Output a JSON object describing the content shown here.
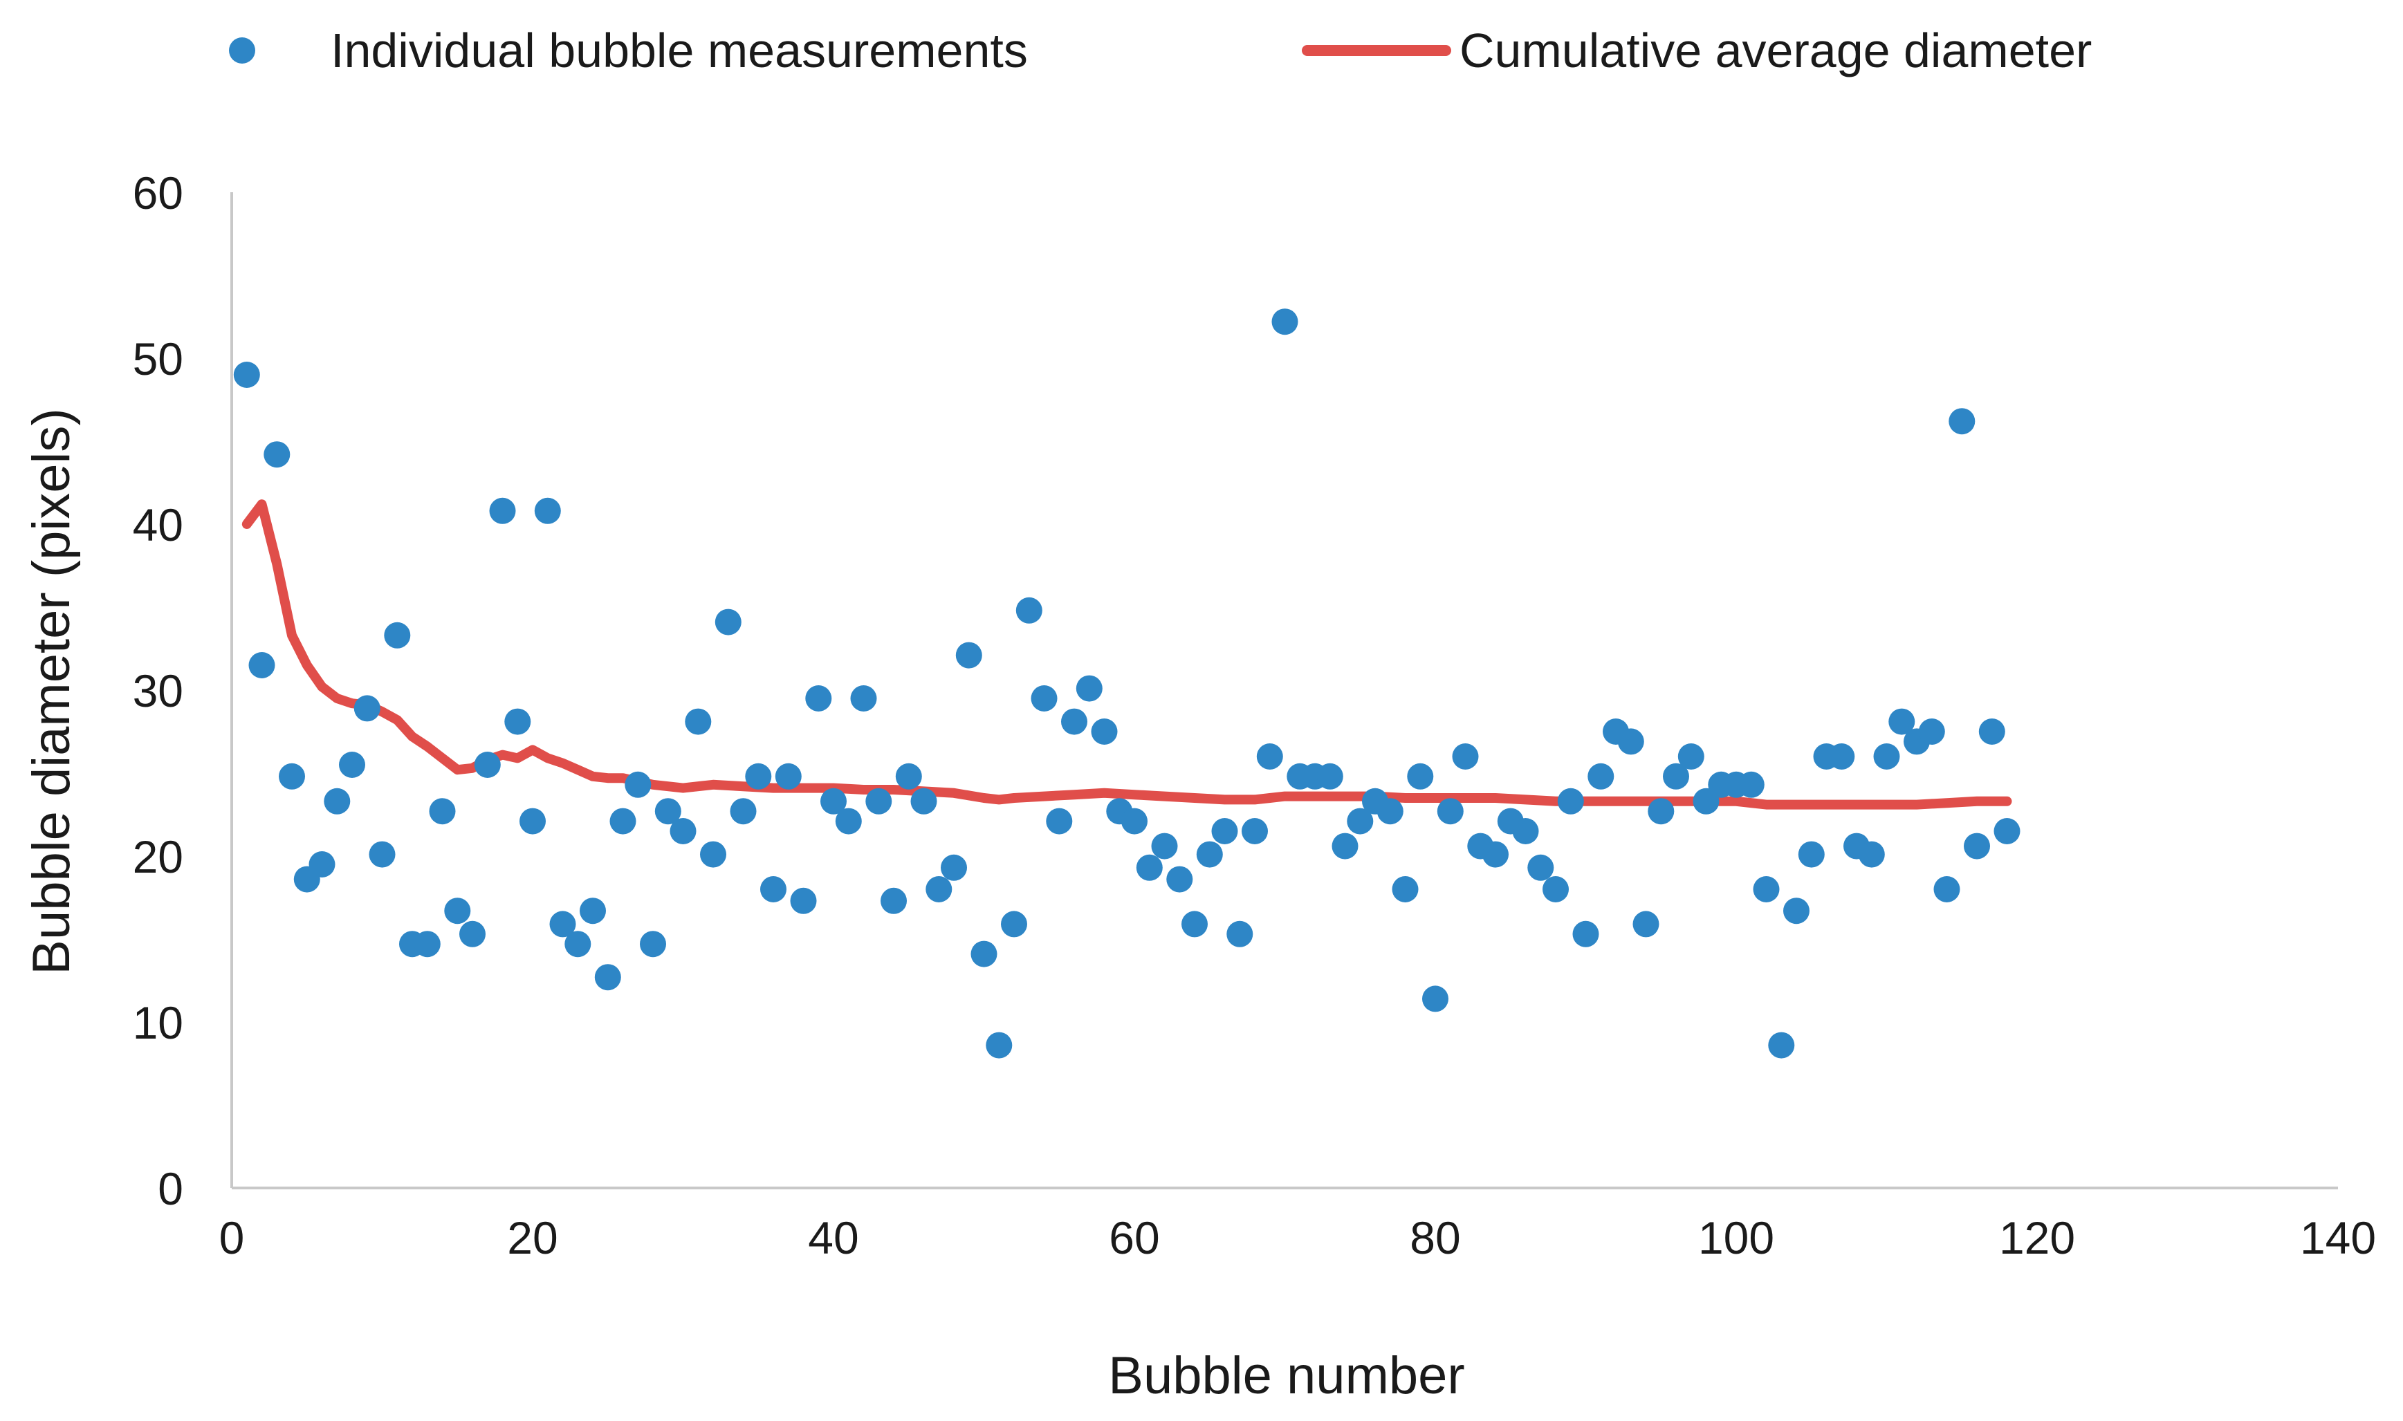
{
  "chart_data": {
    "type": "scatter",
    "title": "",
    "xlabel": "Bubble number",
    "ylabel": "Bubble diameter (pixels)",
    "xlim": [
      0,
      140
    ],
    "ylim": [
      0,
      60
    ],
    "x_ticks": [
      0,
      20,
      40,
      60,
      80,
      100,
      120,
      140
    ],
    "y_ticks": [
      0,
      10,
      20,
      30,
      40,
      50,
      60
    ],
    "grid": false,
    "legend_position": "top",
    "series": [
      {
        "name": "Individual bubble measurements",
        "kind": "scatter",
        "color": "#2E86C6",
        "x": [
          1,
          2,
          3,
          4,
          5,
          6,
          7,
          8,
          9,
          10,
          11,
          12,
          13,
          14,
          15,
          16,
          17,
          18,
          19,
          20,
          21,
          22,
          23,
          24,
          25,
          26,
          27,
          28,
          29,
          30,
          31,
          32,
          33,
          34,
          35,
          36,
          37,
          38,
          39,
          40,
          41,
          42,
          43,
          44,
          45,
          46,
          47,
          48,
          49,
          50,
          51,
          52,
          53,
          54,
          55,
          56,
          57,
          58,
          59,
          60,
          61,
          62,
          63,
          64,
          65,
          66,
          67,
          68,
          69,
          70,
          71,
          72,
          73,
          74,
          75,
          76,
          77,
          78,
          79,
          80,
          81,
          82,
          83,
          84,
          85,
          86,
          87,
          88,
          89,
          90,
          91,
          92,
          93,
          94,
          95,
          96,
          97,
          98,
          99,
          100,
          101,
          102,
          103,
          104,
          105,
          106,
          107,
          108,
          109,
          110,
          111,
          112,
          113,
          114,
          115,
          116,
          117,
          118
        ],
        "y": [
          49,
          31.5,
          44.2,
          24.8,
          18.6,
          19.5,
          23.3,
          25.5,
          28.9,
          20.1,
          33.3,
          14.7,
          14.7,
          22.7,
          16.7,
          15.3,
          25.5,
          40.8,
          28.1,
          22.1,
          40.8,
          15.9,
          14.7,
          16.7,
          12.7,
          22.1,
          24.3,
          14.7,
          22.7,
          21.5,
          28.1,
          20.1,
          34.1,
          22.7,
          24.8,
          18,
          24.8,
          17.3,
          29.5,
          23.3,
          22.1,
          29.5,
          23.3,
          17.3,
          24.8,
          23.3,
          18,
          19.3,
          32.1,
          14.1,
          8.6,
          15.9,
          34.8,
          29.5,
          22.1,
          28.1,
          30.1,
          27.5,
          22.7,
          22.1,
          19.3,
          20.6,
          18.6,
          15.9,
          20.1,
          21.5,
          15.3,
          21.5,
          26,
          52.2,
          24.8,
          24.8,
          24.8,
          20.6,
          22.1,
          23.3,
          22.7,
          18,
          24.8,
          11.4,
          22.7,
          26,
          20.6,
          20.1,
          22.1,
          21.5,
          19.3,
          18,
          23.3,
          15.3,
          24.8,
          27.5,
          26.9,
          15.9,
          22.7,
          24.8,
          26,
          23.3,
          24.3,
          24.3,
          24.3,
          18,
          8.6,
          16.7,
          20.1,
          26,
          26,
          20.6,
          20.1,
          26,
          28.1,
          26.9,
          27.5,
          18,
          46.2,
          20.6,
          27.5,
          21.5
        ]
      },
      {
        "name": "Cumulative average diameter",
        "kind": "line",
        "color": "#E04E4A",
        "x": [
          1,
          2,
          3,
          4,
          5,
          6,
          7,
          8,
          9,
          10,
          11,
          12,
          13,
          14,
          15,
          16,
          17,
          18,
          19,
          20,
          21,
          22,
          23,
          24,
          25,
          26,
          27,
          28,
          29,
          30,
          32,
          34,
          36,
          38,
          40,
          42,
          44,
          46,
          48,
          50,
          51,
          52,
          54,
          56,
          58,
          60,
          62,
          64,
          66,
          68,
          69,
          70,
          72,
          74,
          76,
          78,
          80,
          82,
          84,
          86,
          88,
          90,
          92,
          94,
          96,
          98,
          100,
          102,
          104,
          106,
          108,
          110,
          112,
          114,
          116,
          118
        ],
        "y": [
          40,
          41.2,
          37.6,
          33.3,
          31.5,
          30.2,
          29.5,
          29.2,
          29.1,
          28.7,
          28.2,
          27.2,
          26.6,
          25.9,
          25.2,
          25.3,
          25.8,
          26.1,
          25.9,
          26.4,
          25.9,
          25.6,
          25.2,
          24.8,
          24.7,
          24.7,
          24.5,
          24.3,
          24.2,
          24.1,
          24.3,
          24.2,
          24.1,
          24.1,
          24.1,
          24,
          24,
          23.9,
          23.8,
          23.5,
          23.4,
          23.5,
          23.6,
          23.7,
          23.8,
          23.7,
          23.6,
          23.5,
          23.4,
          23.4,
          23.5,
          23.6,
          23.6,
          23.6,
          23.6,
          23.5,
          23.5,
          23.5,
          23.5,
          23.4,
          23.3,
          23.3,
          23.3,
          23.3,
          23.3,
          23.3,
          23.3,
          23.1,
          23.1,
          23.1,
          23.1,
          23.1,
          23.1,
          23.2,
          23.3,
          23.3
        ]
      }
    ]
  }
}
